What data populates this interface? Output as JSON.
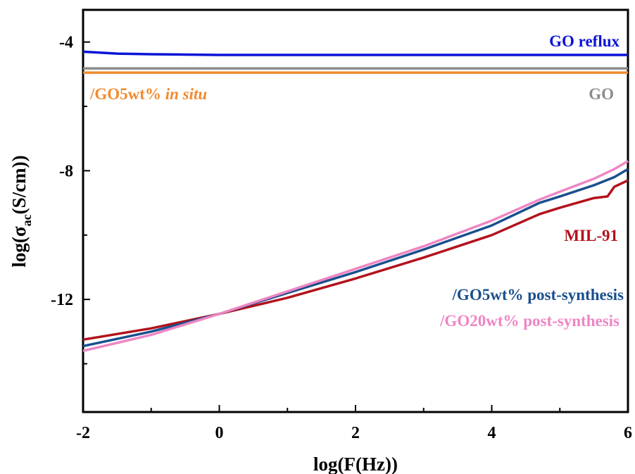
{
  "chart_data": {
    "type": "line",
    "xlabel": "log(F(Hz))",
    "ylabel": {
      "main": "log(σ",
      "sub": "ac",
      "tail": "(S/cm))"
    },
    "xlim": [
      -2,
      6
    ],
    "ylim": [
      -15.5,
      -3
    ],
    "x_ticks": [
      -2,
      0,
      2,
      4,
      6
    ],
    "x_tick_labels": [
      "-2",
      "0",
      "2",
      "4",
      "6"
    ],
    "y_ticks": [
      -4,
      -8,
      -12
    ],
    "y_tick_labels": [
      "-4",
      "-8",
      "-12"
    ],
    "grid": false,
    "series": [
      {
        "key": "go_reflux",
        "name": "GO reflux",
        "color": "#0a14d6",
        "x": [
          -2,
          -1.5,
          -1,
          -0.5,
          0,
          2,
          4,
          6
        ],
        "y": [
          -4.3,
          -4.36,
          -4.38,
          -4.39,
          -4.4,
          -4.4,
          -4.4,
          -4.4
        ]
      },
      {
        "key": "go",
        "name": "GO",
        "color": "#8c8c8c",
        "x": [
          -2,
          6
        ],
        "y": [
          -4.82,
          -4.82
        ]
      },
      {
        "key": "go5_in_situ",
        "name": "/GO5wt% in situ",
        "italic_part": "in situ",
        "color": "#f28a2f",
        "x": [
          -2,
          6
        ],
        "y": [
          -4.95,
          -4.95
        ]
      },
      {
        "key": "mil91",
        "name": "MIL-91",
        "color": "#b3121c",
        "x": [
          -2,
          -1,
          0,
          1,
          2,
          3,
          4,
          4.7,
          5,
          5.5,
          5.7,
          5.8,
          6
        ],
        "y": [
          -13.25,
          -12.9,
          -12.45,
          -11.95,
          -11.35,
          -10.7,
          -10,
          -9.35,
          -9.15,
          -8.85,
          -8.8,
          -8.5,
          -8.3
        ]
      },
      {
        "key": "go5_post",
        "name": "/GO5wt% post-synthesis",
        "color": "#1a4f8e",
        "x": [
          -2,
          -1,
          0,
          1,
          2,
          3,
          4,
          4.7,
          5,
          5.5,
          5.8,
          6
        ],
        "y": [
          -13.45,
          -13.0,
          -12.45,
          -11.8,
          -11.15,
          -10.45,
          -9.7,
          -9.0,
          -8.8,
          -8.45,
          -8.2,
          -7.95
        ]
      },
      {
        "key": "go20_post",
        "name": "/GO20wt% post-synthesis",
        "color": "#ee86c3",
        "x": [
          -2,
          -1,
          0,
          1,
          2,
          3,
          4,
          4.7,
          5,
          5.5,
          5.8,
          6
        ],
        "y": [
          -13.6,
          -13.1,
          -12.45,
          -11.75,
          -11.05,
          -10.35,
          -9.55,
          -8.9,
          -8.65,
          -8.25,
          -7.95,
          -7.7
        ]
      }
    ]
  }
}
